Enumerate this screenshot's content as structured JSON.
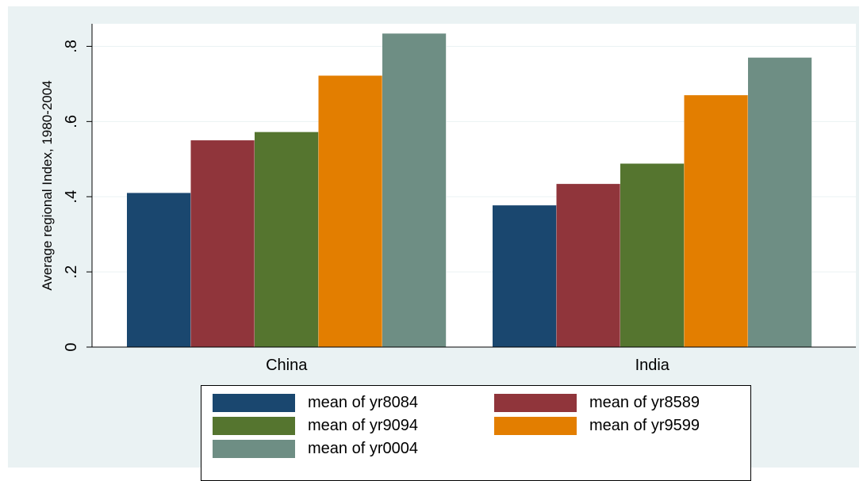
{
  "chart_data": {
    "type": "bar",
    "ylabel": "Average regional Index, 1980-2004",
    "xlabel": "",
    "ylim": [
      0,
      0.86
    ],
    "yticks": [
      0,
      0.2,
      0.4,
      0.6,
      0.8
    ],
    "ytick_labels": [
      "0",
      ".2",
      ".4",
      ".6",
      ".8"
    ],
    "grid": true,
    "legend_position": "bottom",
    "categories": [
      "China",
      "India"
    ],
    "series": [
      {
        "name": "mean of yr8084",
        "color": "#1a476f",
        "values": [
          0.41,
          0.377
        ]
      },
      {
        "name": "mean of yr8589",
        "color": "#90353b",
        "values": [
          0.55,
          0.434
        ]
      },
      {
        "name": "mean of yr9094",
        "color": "#55752f",
        "values": [
          0.572,
          0.488
        ]
      },
      {
        "name": "mean of yr9599",
        "color": "#e37e00",
        "values": [
          0.722,
          0.67
        ]
      },
      {
        "name": "mean of yr0004",
        "color": "#6e8e84",
        "values": [
          0.834,
          0.77
        ]
      }
    ]
  }
}
